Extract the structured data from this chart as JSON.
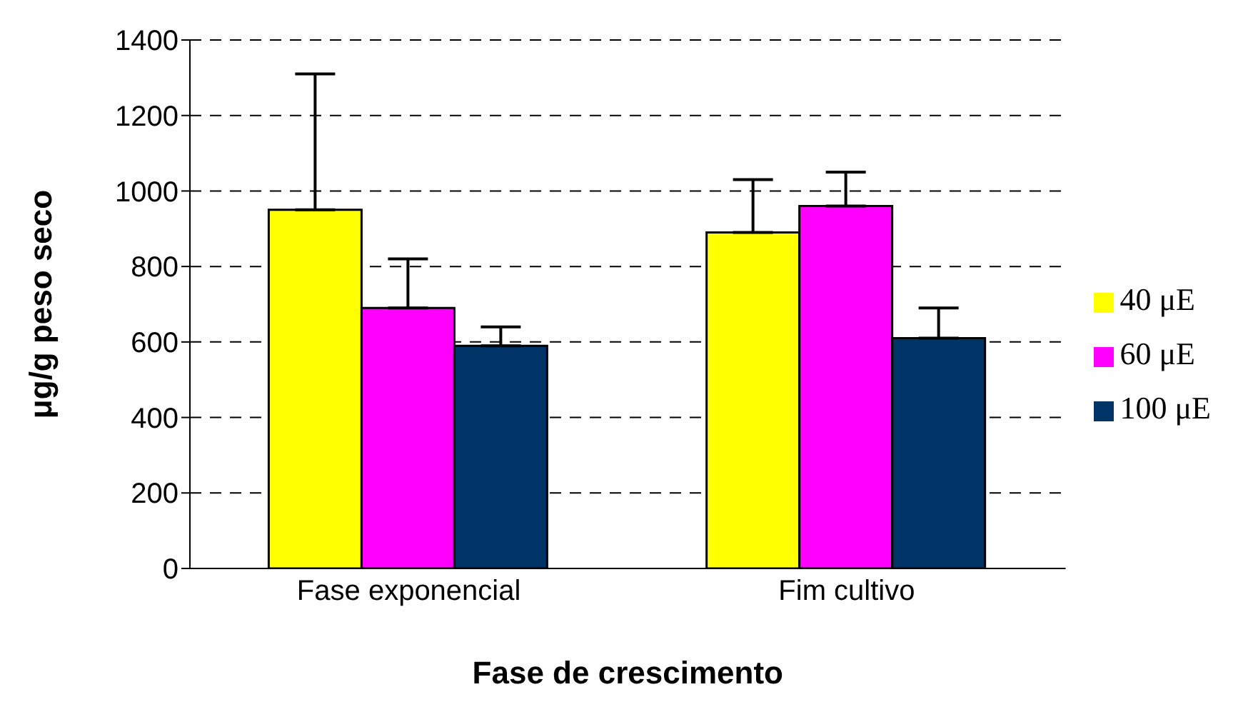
{
  "chart_data": {
    "type": "bar",
    "xlabel": "Fase de crescimento",
    "ylabel": "μg/g peso seco",
    "categories": [
      "Fase exponencial",
      "Fim cultivo"
    ],
    "series": [
      {
        "name": "40 μE",
        "color": "#ffff00",
        "values": [
          950,
          890
        ],
        "errors": [
          [
            950,
            1310
          ],
          [
            890,
            1030
          ]
        ]
      },
      {
        "name": "60 μE",
        "color": "#ff00ff",
        "values": [
          690,
          960
        ],
        "errors": [
          [
            690,
            820
          ],
          [
            960,
            1050
          ]
        ]
      },
      {
        "name": "100 μE",
        "color": "#003366",
        "values": [
          590,
          610
        ],
        "errors": [
          [
            590,
            640
          ],
          [
            610,
            690
          ]
        ]
      }
    ],
    "ylim": [
      0,
      1400
    ],
    "yticks": [
      0,
      200,
      400,
      600,
      800,
      1000,
      1200,
      1400
    ],
    "grid": "y",
    "legend": "right"
  }
}
